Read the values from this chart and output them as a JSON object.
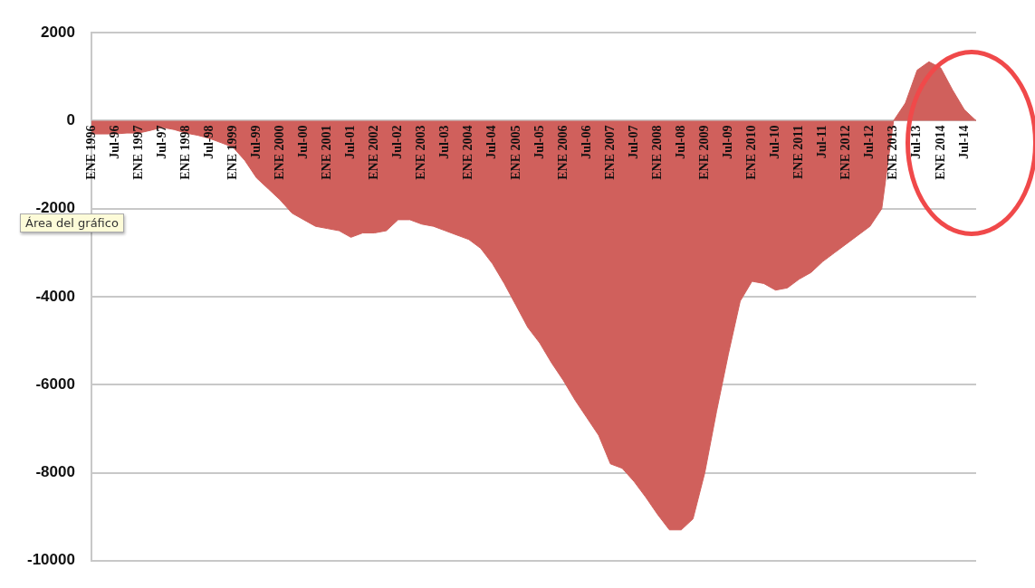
{
  "chart_data": {
    "type": "area",
    "categories": [
      "ENE 1996",
      null,
      "Jul-96",
      null,
      "ENE 1997",
      null,
      "Jul-97",
      null,
      "ENE 1998",
      null,
      "Jul-98",
      null,
      "ENE 1999",
      null,
      "Jul-99",
      null,
      "ENE 2000",
      null,
      "Jul-00",
      null,
      "ENE 2001",
      null,
      "Jul-01",
      null,
      "ENE 2002",
      null,
      "Jul-02",
      null,
      "ENE 2003",
      null,
      "Jul-03",
      null,
      "ENE 2004",
      null,
      "Jul-04",
      null,
      "ENE 2005",
      null,
      "Jul-05",
      null,
      "ENE 2006",
      null,
      "Jul-06",
      null,
      "ENE 2007",
      null,
      "Jul-07",
      null,
      "ENE 2008",
      null,
      "Jul-08",
      null,
      "ENE 2009",
      null,
      "Jul-09",
      null,
      "ENE 2010",
      null,
      "Jul-10",
      null,
      "ENE 2011",
      null,
      "Jul-11",
      null,
      "ENE 2012",
      null,
      "Jul-12",
      null,
      "ENE 2013",
      null,
      "Jul-13",
      null,
      "ENE 2014",
      null,
      "Jul-14",
      null
    ],
    "values": [
      -300,
      -300,
      -300,
      -280,
      -280,
      -220,
      -150,
      -200,
      -280,
      -330,
      -400,
      -500,
      -600,
      -900,
      -1300,
      -1550,
      -1800,
      -2100,
      -2250,
      -2400,
      -2450,
      -2500,
      -2650,
      -2550,
      -2550,
      -2500,
      -2250,
      -2250,
      -2350,
      -2400,
      -2500,
      -2600,
      -2700,
      -2900,
      -3250,
      -3700,
      -4200,
      -4700,
      -5050,
      -5500,
      -5900,
      -6350,
      -6750,
      -7150,
      -7800,
      -7900,
      -8200,
      -8560,
      -8950,
      -9300,
      -9300,
      -9050,
      -8000,
      -6600,
      -5300,
      -4100,
      -3650,
      -3700,
      -3850,
      -3800,
      -3600,
      -3450,
      -3200,
      -3000,
      -2800,
      -2600,
      -2400,
      -2000,
      0,
      400,
      1150,
      1340,
      1200,
      700,
      250,
      0
    ],
    "color": "#d0605c",
    "ylim": [
      -10000,
      2000
    ],
    "yticks": [
      -10000,
      -8000,
      -6000,
      -4000,
      -2000,
      0,
      2000
    ],
    "grid": "y",
    "annotations": [
      "Área del gráfico"
    ]
  }
}
